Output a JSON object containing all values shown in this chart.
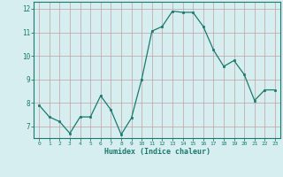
{
  "x": [
    0,
    1,
    2,
    3,
    4,
    5,
    6,
    7,
    8,
    9,
    10,
    11,
    12,
    13,
    14,
    15,
    16,
    17,
    18,
    19,
    20,
    21,
    22,
    23
  ],
  "y": [
    7.9,
    7.4,
    7.2,
    6.7,
    7.4,
    7.4,
    8.3,
    7.7,
    6.65,
    7.35,
    9.0,
    11.05,
    11.25,
    11.9,
    11.85,
    11.85,
    11.25,
    10.25,
    9.55,
    9.8,
    9.2,
    8.1,
    8.55,
    8.55
  ],
  "xlabel": "Humidex (Indice chaleur)",
  "ylim": [
    6.5,
    12.3
  ],
  "xlim": [
    -0.5,
    23.5
  ],
  "yticks": [
    7,
    8,
    9,
    10,
    11,
    12
  ],
  "xticks": [
    0,
    1,
    2,
    3,
    4,
    5,
    6,
    7,
    8,
    9,
    10,
    11,
    12,
    13,
    14,
    15,
    16,
    17,
    18,
    19,
    20,
    21,
    22,
    23
  ],
  "line_color": "#1a7a6e",
  "marker_color": "#1a7a6e",
  "bg_color": "#d6eef0",
  "grid_color": "#c0a0a0",
  "axis_color": "#1a7a6e",
  "tick_color": "#1a7a6e",
  "label_color": "#1a7a6e"
}
